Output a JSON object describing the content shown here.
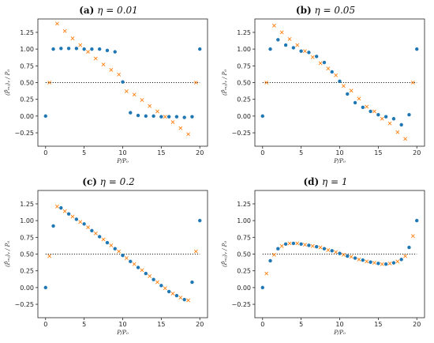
{
  "figure": {
    "colors": {
      "predicted": "#1f77b4",
      "reference": "#ff7f0e",
      "baseline": "#222222"
    }
  },
  "chart_data": [
    {
      "type": "scatter",
      "panel_label": "(a)",
      "title_math": "η = 0.01",
      "xlabel": "P/P₀",
      "ylabel": "⟨P̂ₘⱼ⟩ᵧ / P₀",
      "xlim": [
        -1,
        21
      ],
      "ylim": [
        -0.45,
        1.45
      ],
      "xticks": [
        0,
        5,
        10,
        15,
        20
      ],
      "yticks": [
        -0.25,
        0.0,
        0.25,
        0.5,
        0.75,
        1.0,
        1.25
      ],
      "ytick_labels": [
        "−0.25",
        "0.00",
        "0.25",
        "0.50",
        "0.75",
        "1.00",
        "1.25"
      ],
      "baseline": 0.5,
      "series": [
        {
          "marker": "dot",
          "color": "#1f77b4",
          "x": [
            0,
            1,
            2,
            3,
            4,
            5,
            6,
            7,
            8,
            9,
            10,
            11,
            12,
            13,
            14,
            15,
            16,
            17,
            18,
            19,
            20
          ],
          "y": [
            0.0,
            1.0,
            1.01,
            1.01,
            1.01,
            1.0,
            1.0,
            1.0,
            0.98,
            0.96,
            0.51,
            0.05,
            0.01,
            0.0,
            0.0,
            -0.01,
            -0.01,
            -0.01,
            -0.02,
            -0.01,
            1.0
          ]
        },
        {
          "marker": "cross",
          "color": "#ff7f0e",
          "x": [
            0.5,
            1.5,
            2.5,
            3.5,
            4.5,
            5.5,
            6.5,
            7.5,
            8.5,
            9.5,
            10.5,
            11.5,
            12.5,
            13.5,
            14.5,
            15.5,
            16.5,
            17.5,
            18.5,
            19.5
          ],
          "y": [
            0.5,
            1.38,
            1.27,
            1.16,
            1.06,
            0.96,
            0.86,
            0.77,
            0.69,
            0.62,
            0.37,
            0.32,
            0.24,
            0.15,
            0.07,
            -0.01,
            -0.09,
            -0.18,
            -0.27,
            0.5
          ]
        }
      ]
    },
    {
      "type": "scatter",
      "panel_label": "(b)",
      "title_math": "η = 0.05",
      "xlabel": "P/P₀",
      "ylabel": "⟨P̂ₘⱼ⟩ᵧ / P₀",
      "xlim": [
        -1,
        21
      ],
      "ylim": [
        -0.45,
        1.45
      ],
      "xticks": [
        0,
        5,
        10,
        15,
        20
      ],
      "yticks": [
        -0.25,
        0.0,
        0.25,
        0.5,
        0.75,
        1.0,
        1.25
      ],
      "ytick_labels": [
        "−0.25",
        "0.00",
        "0.25",
        "0.50",
        "0.75",
        "1.00",
        "1.25"
      ],
      "baseline": 0.5,
      "series": [
        {
          "marker": "dot",
          "color": "#1f77b4",
          "x": [
            0,
            1,
            2,
            3,
            4,
            5,
            6,
            7,
            8,
            9,
            10,
            11,
            12,
            13,
            14,
            15,
            16,
            17,
            18,
            19,
            20
          ],
          "y": [
            0.0,
            1.0,
            1.14,
            1.06,
            1.02,
            0.97,
            0.95,
            0.89,
            0.8,
            0.66,
            0.52,
            0.33,
            0.2,
            0.13,
            0.07,
            0.02,
            -0.01,
            -0.04,
            -0.13,
            0.02,
            1.0
          ]
        },
        {
          "marker": "cross",
          "color": "#ff7f0e",
          "x": [
            0.5,
            1.5,
            2.5,
            3.5,
            4.5,
            5.5,
            6.5,
            7.5,
            8.5,
            9.5,
            10.5,
            11.5,
            12.5,
            13.5,
            14.5,
            15.5,
            16.5,
            17.5,
            18.5,
            19.5
          ],
          "y": [
            0.5,
            1.35,
            1.25,
            1.15,
            1.06,
            0.97,
            0.88,
            0.79,
            0.71,
            0.61,
            0.45,
            0.38,
            0.26,
            0.14,
            0.07,
            -0.04,
            -0.11,
            -0.24,
            -0.34,
            0.5
          ]
        }
      ]
    },
    {
      "type": "scatter",
      "panel_label": "(c)",
      "title_math": "η = 0.2",
      "xlabel": "P/P₀",
      "ylabel": "⟨P̂ₘⱼ⟩ᵧ / P₀",
      "xlim": [
        -1,
        21
      ],
      "ylim": [
        -0.45,
        1.45
      ],
      "xticks": [
        0,
        5,
        10,
        15,
        20
      ],
      "yticks": [
        -0.25,
        0.0,
        0.25,
        0.5,
        0.75,
        1.0,
        1.25
      ],
      "ytick_labels": [
        "−0.25",
        "0.00",
        "0.25",
        "0.50",
        "0.75",
        "1.00",
        "1.25"
      ],
      "baseline": 0.5,
      "series": [
        {
          "marker": "dot",
          "color": "#1f77b4",
          "x": [
            0,
            1,
            2,
            3,
            4,
            5,
            6,
            7,
            8,
            9,
            10,
            11,
            12,
            13,
            14,
            15,
            16,
            17,
            18,
            19,
            20
          ],
          "y": [
            0.0,
            0.92,
            1.19,
            1.1,
            1.02,
            0.95,
            0.85,
            0.76,
            0.67,
            0.58,
            0.48,
            0.39,
            0.3,
            0.21,
            0.12,
            0.03,
            -0.06,
            -0.12,
            -0.18,
            0.08,
            1.0
          ]
        },
        {
          "marker": "cross",
          "color": "#ff7f0e",
          "x": [
            0.5,
            1.5,
            2.5,
            3.5,
            4.5,
            5.5,
            6.5,
            7.5,
            8.5,
            9.5,
            10.5,
            11.5,
            12.5,
            13.5,
            14.5,
            15.5,
            16.5,
            17.5,
            18.5,
            19.5
          ],
          "y": [
            0.47,
            1.21,
            1.14,
            1.06,
            0.98,
            0.9,
            0.81,
            0.72,
            0.63,
            0.54,
            0.44,
            0.35,
            0.26,
            0.17,
            0.08,
            -0.01,
            -0.09,
            -0.15,
            -0.19,
            0.54
          ]
        }
      ]
    },
    {
      "type": "scatter",
      "panel_label": "(d)",
      "title_math": "η = 1",
      "xlabel": "P/P₀",
      "ylabel": "⟨P̂ₘⱼ⟩ᵧ / P₀",
      "xlim": [
        -1,
        21
      ],
      "ylim": [
        -0.45,
        1.45
      ],
      "xticks": [
        0,
        5,
        10,
        15,
        20
      ],
      "yticks": [
        -0.25,
        0.0,
        0.25,
        0.5,
        0.75,
        1.0,
        1.25
      ],
      "ytick_labels": [
        "−0.25",
        "0.00",
        "0.25",
        "0.50",
        "0.75",
        "1.00",
        "1.25"
      ],
      "baseline": 0.5,
      "series": [
        {
          "marker": "dot",
          "color": "#1f77b4",
          "x": [
            0,
            1,
            2,
            3,
            4,
            5,
            6,
            7,
            8,
            9,
            10,
            11,
            12,
            13,
            14,
            15,
            16,
            17,
            18,
            19,
            20
          ],
          "y": [
            0.0,
            0.4,
            0.58,
            0.65,
            0.66,
            0.65,
            0.63,
            0.61,
            0.58,
            0.55,
            0.51,
            0.47,
            0.44,
            0.41,
            0.38,
            0.36,
            0.35,
            0.37,
            0.42,
            0.6,
            1.0
          ]
        },
        {
          "marker": "cross",
          "color": "#ff7f0e",
          "x": [
            0.5,
            1.5,
            2.5,
            3.5,
            4.5,
            5.5,
            6.5,
            7.5,
            8.5,
            9.5,
            10.5,
            11.5,
            12.5,
            13.5,
            14.5,
            15.5,
            16.5,
            17.5,
            18.5,
            19.5
          ],
          "y": [
            0.21,
            0.49,
            0.62,
            0.66,
            0.66,
            0.64,
            0.62,
            0.6,
            0.56,
            0.53,
            0.49,
            0.46,
            0.42,
            0.39,
            0.37,
            0.35,
            0.36,
            0.39,
            0.47,
            0.77
          ]
        }
      ]
    }
  ]
}
